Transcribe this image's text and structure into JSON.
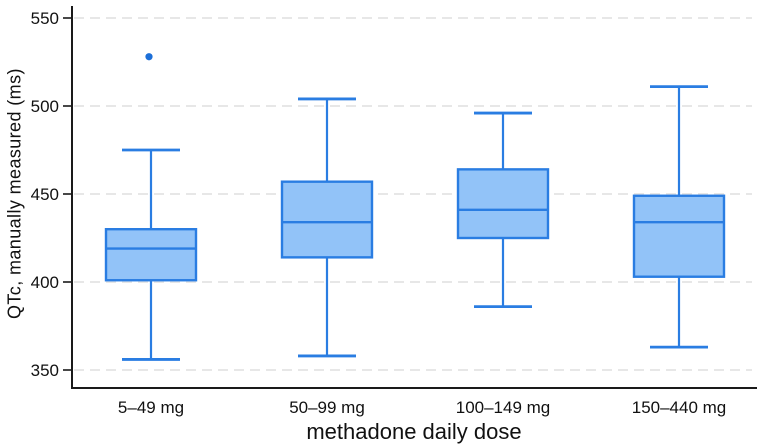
{
  "chart_data": {
    "type": "box",
    "title": "",
    "xlabel": "methadone daily dose",
    "ylabel": "QTc, manually measured (ms)",
    "ylim": [
      340,
      557
    ],
    "yticks": [
      350,
      400,
      450,
      500,
      550
    ],
    "grid": "horizontal dashed gridlines at each y tick",
    "legend": "none",
    "categories": [
      "5–49 mg",
      "50–99 mg",
      "100–149 mg",
      "150–440 mg"
    ],
    "series": [
      {
        "category": "5–49 mg",
        "whisker_low": 356,
        "q1": 401,
        "median": 419,
        "q3": 430,
        "whisker_high": 475,
        "outliers": [
          528
        ]
      },
      {
        "category": "50–99 mg",
        "whisker_low": 358,
        "q1": 414,
        "median": 434,
        "q3": 457,
        "whisker_high": 504,
        "outliers": []
      },
      {
        "category": "100–149 mg",
        "whisker_low": 386,
        "q1": 425,
        "median": 441,
        "q3": 464,
        "whisker_high": 496,
        "outliers": []
      },
      {
        "category": "150–440 mg",
        "whisker_low": 363,
        "q1": 403,
        "median": 434,
        "q3": 449,
        "whisker_high": 511,
        "outliers": []
      }
    ],
    "colors": {
      "box_fill": "#92c3f8",
      "box_stroke": "#2a7de2",
      "outlier": "#1c6fd8",
      "axis": "#1a1a1a",
      "gridline": "#e7e7e7",
      "text": "#111111",
      "background": "#ffffff"
    }
  }
}
